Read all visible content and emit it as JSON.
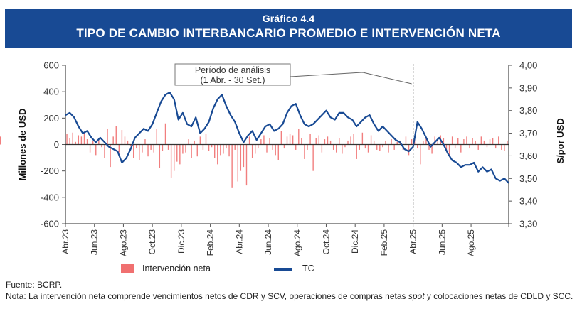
{
  "header": {
    "subtitle": "Gráfico 4.4",
    "title": "TIPO DE CAMBIO INTERBANCARIO PROMEDIO E INTERVENCIÓN NETA"
  },
  "chart_data": {
    "type": "bar+line",
    "title": "TIPO DE CAMBIO INTERBANCARIO PROMEDIO E INTERVENCIÓN NETA",
    "subtitle": "Gráfico 4.4",
    "ylabel_left": "Millones de USD",
    "ylabel_right": "S/por USD",
    "ylim_left": [
      -600,
      600
    ],
    "yticks_left": [
      "600",
      "400",
      "200",
      "0",
      "-200",
      "-400",
      "-600"
    ],
    "ylim_right": [
      3.3,
      4.0
    ],
    "yticks_right": [
      "4,00",
      "3,90",
      "3,80",
      "3,70",
      "3,60",
      "3,50",
      "3,40",
      "3,30"
    ],
    "xlim_months": [
      0,
      30.6
    ],
    "xticks": [
      "Abr.23",
      "Jun.23",
      "Ago.23",
      "Oct.23",
      "Dic.23",
      "Feb.24",
      "Abr.24",
      "Jun.24",
      "Ago.24",
      "Oct.24",
      "Dic.24",
      "Feb.25",
      "Abr.25",
      "Jun.25",
      "Ago.25"
    ],
    "annotation": {
      "line1": "Período de análisis",
      "line2": "(1 Abr. - 30 Set.)",
      "marker_month": 24.0
    },
    "legend": [
      "Intervención neta",
      "TC"
    ],
    "legend_placement": "bottom",
    "colors": {
      "bars": "#f07070",
      "line": "#184a94",
      "zero_line": "#333333"
    },
    "series": [
      {
        "name": "TC",
        "type": "line",
        "x_months": [
          0,
          0.3,
          0.6,
          0.9,
          1.2,
          1.5,
          1.8,
          2.1,
          2.4,
          2.7,
          3.0,
          3.3,
          3.6,
          3.9,
          4.2,
          4.5,
          4.8,
          5.1,
          5.4,
          5.7,
          6.0,
          6.3,
          6.6,
          6.9,
          7.2,
          7.5,
          7.8,
          8.1,
          8.4,
          8.7,
          9.0,
          9.3,
          9.6,
          9.9,
          10.2,
          10.5,
          10.8,
          11.1,
          11.4,
          11.7,
          12.0,
          12.3,
          12.6,
          12.9,
          13.2,
          13.5,
          13.8,
          14.1,
          14.4,
          14.7,
          15.0,
          15.3,
          15.6,
          15.9,
          16.2,
          16.5,
          16.8,
          17.1,
          17.4,
          17.7,
          18.0,
          18.3,
          18.6,
          18.9,
          19.2,
          19.5,
          19.8,
          20.1,
          20.4,
          20.7,
          21.0,
          21.3,
          21.6,
          21.9,
          22.2,
          22.5,
          22.8,
          23.1,
          23.4,
          23.7,
          24.0,
          24.3,
          24.6,
          24.9,
          25.2,
          25.5,
          25.8,
          26.1,
          26.4,
          26.7,
          27.0,
          27.3,
          27.6,
          27.9,
          28.2,
          28.5,
          28.8,
          29.1,
          29.4,
          29.7,
          30.0,
          30.3,
          30.6
        ],
        "values": [
          3.78,
          3.79,
          3.77,
          3.73,
          3.7,
          3.71,
          3.68,
          3.66,
          3.68,
          3.66,
          3.64,
          3.63,
          3.62,
          3.57,
          3.59,
          3.63,
          3.68,
          3.7,
          3.72,
          3.71,
          3.74,
          3.79,
          3.84,
          3.87,
          3.88,
          3.85,
          3.76,
          3.79,
          3.74,
          3.73,
          3.77,
          3.7,
          3.72,
          3.75,
          3.81,
          3.85,
          3.87,
          3.82,
          3.78,
          3.75,
          3.7,
          3.66,
          3.69,
          3.71,
          3.67,
          3.7,
          3.73,
          3.74,
          3.71,
          3.72,
          3.74,
          3.79,
          3.82,
          3.83,
          3.78,
          3.74,
          3.73,
          3.74,
          3.76,
          3.78,
          3.8,
          3.77,
          3.76,
          3.79,
          3.79,
          3.77,
          3.76,
          3.73,
          3.75,
          3.77,
          3.78,
          3.74,
          3.71,
          3.73,
          3.71,
          3.69,
          3.67,
          3.66,
          3.63,
          3.62,
          3.64,
          3.75,
          3.72,
          3.68,
          3.64,
          3.66,
          3.68,
          3.65,
          3.61,
          3.58,
          3.57,
          3.55,
          3.56,
          3.56,
          3.57,
          3.53,
          3.55,
          3.53,
          3.54,
          3.5,
          3.49,
          3.5,
          3.48
        ]
      },
      {
        "name": "Intervención neta",
        "type": "bar",
        "x_months": [
          0.1,
          0.3,
          0.5,
          0.7,
          0.9,
          1.1,
          1.3,
          1.5,
          1.7,
          1.9,
          2.1,
          2.3,
          2.5,
          2.7,
          2.9,
          3.1,
          3.3,
          3.5,
          3.7,
          3.9,
          4.1,
          4.3,
          4.5,
          4.7,
          4.9,
          5.1,
          5.3,
          5.5,
          5.7,
          5.9,
          6.1,
          6.3,
          6.5,
          6.7,
          6.9,
          7.1,
          7.3,
          7.5,
          7.7,
          7.9,
          8.1,
          8.3,
          8.5,
          8.7,
          8.9,
          9.1,
          9.3,
          9.5,
          9.7,
          9.9,
          10.1,
          10.3,
          10.5,
          10.7,
          10.9,
          11.1,
          11.3,
          11.5,
          11.7,
          11.9,
          12.1,
          12.3,
          12.5,
          12.7,
          12.9,
          13.1,
          13.3,
          13.5,
          13.7,
          13.9,
          14.1,
          14.3,
          14.5,
          14.7,
          14.9,
          15.1,
          15.3,
          15.5,
          15.7,
          15.9,
          16.1,
          16.3,
          16.5,
          16.7,
          16.9,
          17.1,
          17.3,
          17.5,
          17.7,
          17.9,
          18.1,
          18.3,
          18.5,
          18.7,
          18.9,
          19.1,
          19.3,
          19.5,
          19.7,
          19.9,
          20.1,
          20.3,
          20.5,
          20.7,
          20.9,
          21.1,
          21.3,
          21.5,
          21.7,
          21.9,
          22.1,
          22.3,
          22.5,
          22.7,
          22.9,
          23.1,
          23.3,
          23.5,
          23.7,
          23.9,
          24.1,
          24.3,
          24.5,
          24.7,
          24.9,
          25.1,
          25.3,
          25.5,
          25.7,
          25.9,
          26.1,
          26.3,
          26.5,
          26.7,
          26.9,
          27.1,
          27.3,
          27.5,
          27.7,
          27.9,
          28.1,
          28.3,
          28.5,
          28.7,
          28.9,
          29.1,
          29.3,
          29.5,
          29.7,
          29.9,
          30.1,
          30.3,
          30.5
        ],
        "values": [
          80,
          50,
          90,
          20,
          70,
          60,
          90,
          40,
          -60,
          30,
          -80,
          40,
          -20,
          -100,
          120,
          -170,
          60,
          140,
          -60,
          110,
          60,
          30,
          -10,
          -100,
          -30,
          -120,
          -60,
          40,
          -90,
          -40,
          -60,
          120,
          -180,
          -50,
          160,
          -40,
          -250,
          -200,
          -130,
          -150,
          -70,
          -60,
          40,
          -100,
          30,
          -90,
          60,
          -40,
          80,
          -50,
          -20,
          -100,
          -150,
          -80,
          -70,
          -30,
          -90,
          -330,
          -40,
          -280,
          -200,
          -170,
          -310,
          60,
          -100,
          -70,
          -30,
          40,
          70,
          -60,
          50,
          -40,
          -80,
          -120,
          100,
          -30,
          60,
          80,
          70,
          -40,
          120,
          50,
          -110,
          -40,
          80,
          -200,
          50,
          70,
          -60,
          40,
          60,
          30,
          -40,
          -60,
          50,
          -70,
          -20,
          30,
          60,
          80,
          -110,
          -40,
          90,
          -30,
          -60,
          70,
          30,
          -40,
          -50,
          -20,
          30,
          -60,
          40,
          -40,
          20,
          30,
          -40,
          60,
          -80,
          40,
          50,
          -30,
          -150,
          30,
          50,
          -40,
          -70,
          60,
          30,
          70,
          50,
          -50,
          -80,
          60,
          -30,
          50,
          -60,
          40,
          60,
          -30,
          50,
          30,
          -40,
          60,
          30,
          -20,
          40,
          50,
          -30,
          60,
          -40,
          -50,
          30,
          60
        ]
      }
    ]
  },
  "legend": {
    "bars_label": "Intervención neta",
    "line_label": "TC"
  },
  "footer": {
    "source": "Fuente: BCRP.",
    "note_prefix": "Nota: La intervención neta comprende vencimientos netos de CDR y SCV, operaciones de compras netas ",
    "note_italic": "spot",
    "note_suffix": " y colocaciones netas de CDLD y SCC."
  }
}
